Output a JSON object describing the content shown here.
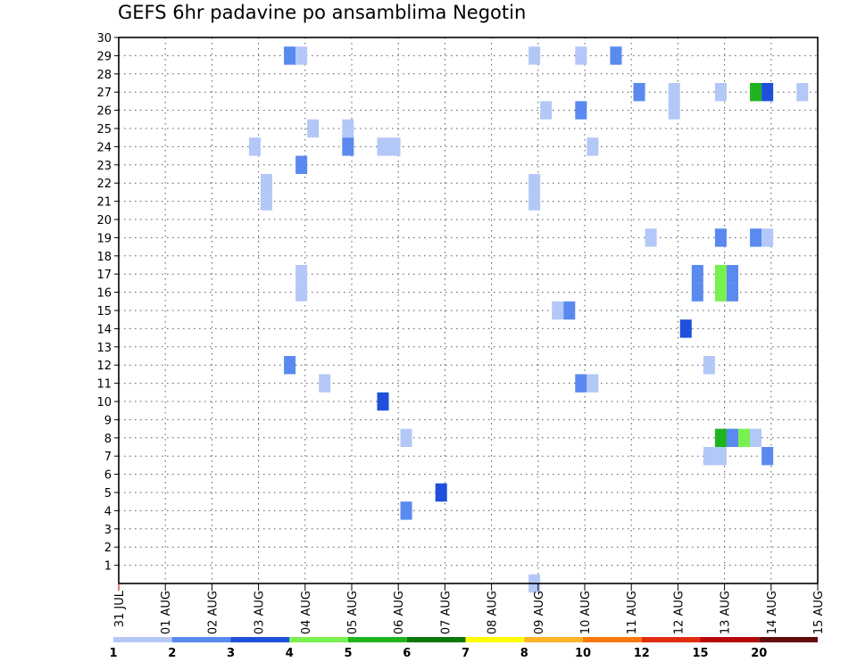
{
  "chart_data": {
    "type": "heatmap",
    "title": "GEFS 6hr padavine po ansamblima Negotin",
    "x_tick_labels": [
      "31 JUL",
      "01 AUG",
      "02 AUG",
      "03 AUG",
      "04 AUG",
      "05 AUG",
      "06 AUG",
      "07 AUG",
      "08 AUG",
      "09 AUG",
      "10 AUG",
      "11 AUG",
      "12 AUG",
      "13 AUG",
      "14 AUG",
      "15 AUG"
    ],
    "y_range": [
      0,
      30
    ],
    "y_ticks": [
      1,
      2,
      3,
      4,
      5,
      6,
      7,
      8,
      9,
      10,
      11,
      12,
      13,
      14,
      15,
      16,
      17,
      18,
      19,
      20,
      21,
      22,
      23,
      24,
      25,
      26,
      27,
      28,
      29,
      30
    ],
    "grid": true,
    "legend": {
      "position": "bottom",
      "labels": [
        "1",
        "2",
        "3",
        "4",
        "5",
        "6",
        "7",
        "8",
        "10",
        "12",
        "15",
        "20"
      ],
      "colors": [
        "#b4c8f8",
        "#5a8af0",
        "#1e50dc",
        "#78f050",
        "#1eb41e",
        "#0a780a",
        "#ffff00",
        "#ffb428",
        "#ff780a",
        "#e12d0f",
        "#b40a0a",
        "#640a0a"
      ]
    },
    "cells": [
      {
        "day": 3.67,
        "member": 29,
        "bin": 2
      },
      {
        "day": 3.92,
        "member": 29,
        "bin": 1
      },
      {
        "day": 8.92,
        "member": 29,
        "bin": 1
      },
      {
        "day": 9.92,
        "member": 29,
        "bin": 1
      },
      {
        "day": 10.67,
        "member": 29,
        "bin": 2
      },
      {
        "day": 11.17,
        "member": 27,
        "bin": 2
      },
      {
        "day": 11.92,
        "member": 27,
        "bin": 1
      },
      {
        "day": 12.92,
        "member": 27,
        "bin": 1
      },
      {
        "day": 13.67,
        "member": 27,
        "bin": 5
      },
      {
        "day": 13.92,
        "member": 27,
        "bin": 3
      },
      {
        "day": 14.67,
        "member": 27,
        "bin": 1
      },
      {
        "day": 9.17,
        "member": 26,
        "bin": 1
      },
      {
        "day": 9.92,
        "member": 26,
        "bin": 2
      },
      {
        "day": 11.92,
        "member": 26,
        "bin": 1
      },
      {
        "day": 4.17,
        "member": 25,
        "bin": 1
      },
      {
        "day": 4.92,
        "member": 25,
        "bin": 1
      },
      {
        "day": 2.92,
        "member": 24,
        "bin": 1
      },
      {
        "day": 4.92,
        "member": 24,
        "bin": 2
      },
      {
        "day": 5.67,
        "member": 24,
        "bin": 1
      },
      {
        "day": 5.92,
        "member": 24,
        "bin": 1
      },
      {
        "day": 10.17,
        "member": 24,
        "bin": 1
      },
      {
        "day": 3.92,
        "member": 23,
        "bin": 2
      },
      {
        "day": 3.17,
        "member": 22,
        "bin": 1
      },
      {
        "day": 8.92,
        "member": 22,
        "bin": 1
      },
      {
        "day": 3.17,
        "member": 21,
        "bin": 1
      },
      {
        "day": 8.92,
        "member": 21,
        "bin": 1
      },
      {
        "day": 11.42,
        "member": 19,
        "bin": 1
      },
      {
        "day": 12.92,
        "member": 19,
        "bin": 2
      },
      {
        "day": 13.67,
        "member": 19,
        "bin": 2
      },
      {
        "day": 13.92,
        "member": 19,
        "bin": 1
      },
      {
        "day": 3.92,
        "member": 17,
        "bin": 1
      },
      {
        "day": 12.42,
        "member": 17,
        "bin": 2
      },
      {
        "day": 12.92,
        "member": 17,
        "bin": 4
      },
      {
        "day": 13.17,
        "member": 17,
        "bin": 2
      },
      {
        "day": 3.92,
        "member": 16,
        "bin": 1
      },
      {
        "day": 12.42,
        "member": 16,
        "bin": 2
      },
      {
        "day": 12.92,
        "member": 16,
        "bin": 4
      },
      {
        "day": 13.17,
        "member": 16,
        "bin": 2
      },
      {
        "day": 9.42,
        "member": 15,
        "bin": 1
      },
      {
        "day": 9.67,
        "member": 15,
        "bin": 2
      },
      {
        "day": 12.17,
        "member": 14,
        "bin": 3
      },
      {
        "day": 3.67,
        "member": 12,
        "bin": 2
      },
      {
        "day": 12.67,
        "member": 12,
        "bin": 1
      },
      {
        "day": 4.42,
        "member": 11,
        "bin": 1
      },
      {
        "day": 9.92,
        "member": 11,
        "bin": 2
      },
      {
        "day": 10.17,
        "member": 11,
        "bin": 1
      },
      {
        "day": 5.67,
        "member": 10,
        "bin": 3
      },
      {
        "day": 6.17,
        "member": 8,
        "bin": 1
      },
      {
        "day": 12.92,
        "member": 8,
        "bin": 5
      },
      {
        "day": 13.17,
        "member": 8,
        "bin": 2
      },
      {
        "day": 13.42,
        "member": 8,
        "bin": 4
      },
      {
        "day": 13.67,
        "member": 8,
        "bin": 1
      },
      {
        "day": 12.67,
        "member": 7,
        "bin": 1
      },
      {
        "day": 12.92,
        "member": 7,
        "bin": 1
      },
      {
        "day": 13.92,
        "member": 7,
        "bin": 2
      },
      {
        "day": 6.92,
        "member": 5,
        "bin": 3
      },
      {
        "day": 6.17,
        "member": 4,
        "bin": 2
      },
      {
        "day": 8.92,
        "member": 0,
        "bin": 1
      }
    ]
  }
}
